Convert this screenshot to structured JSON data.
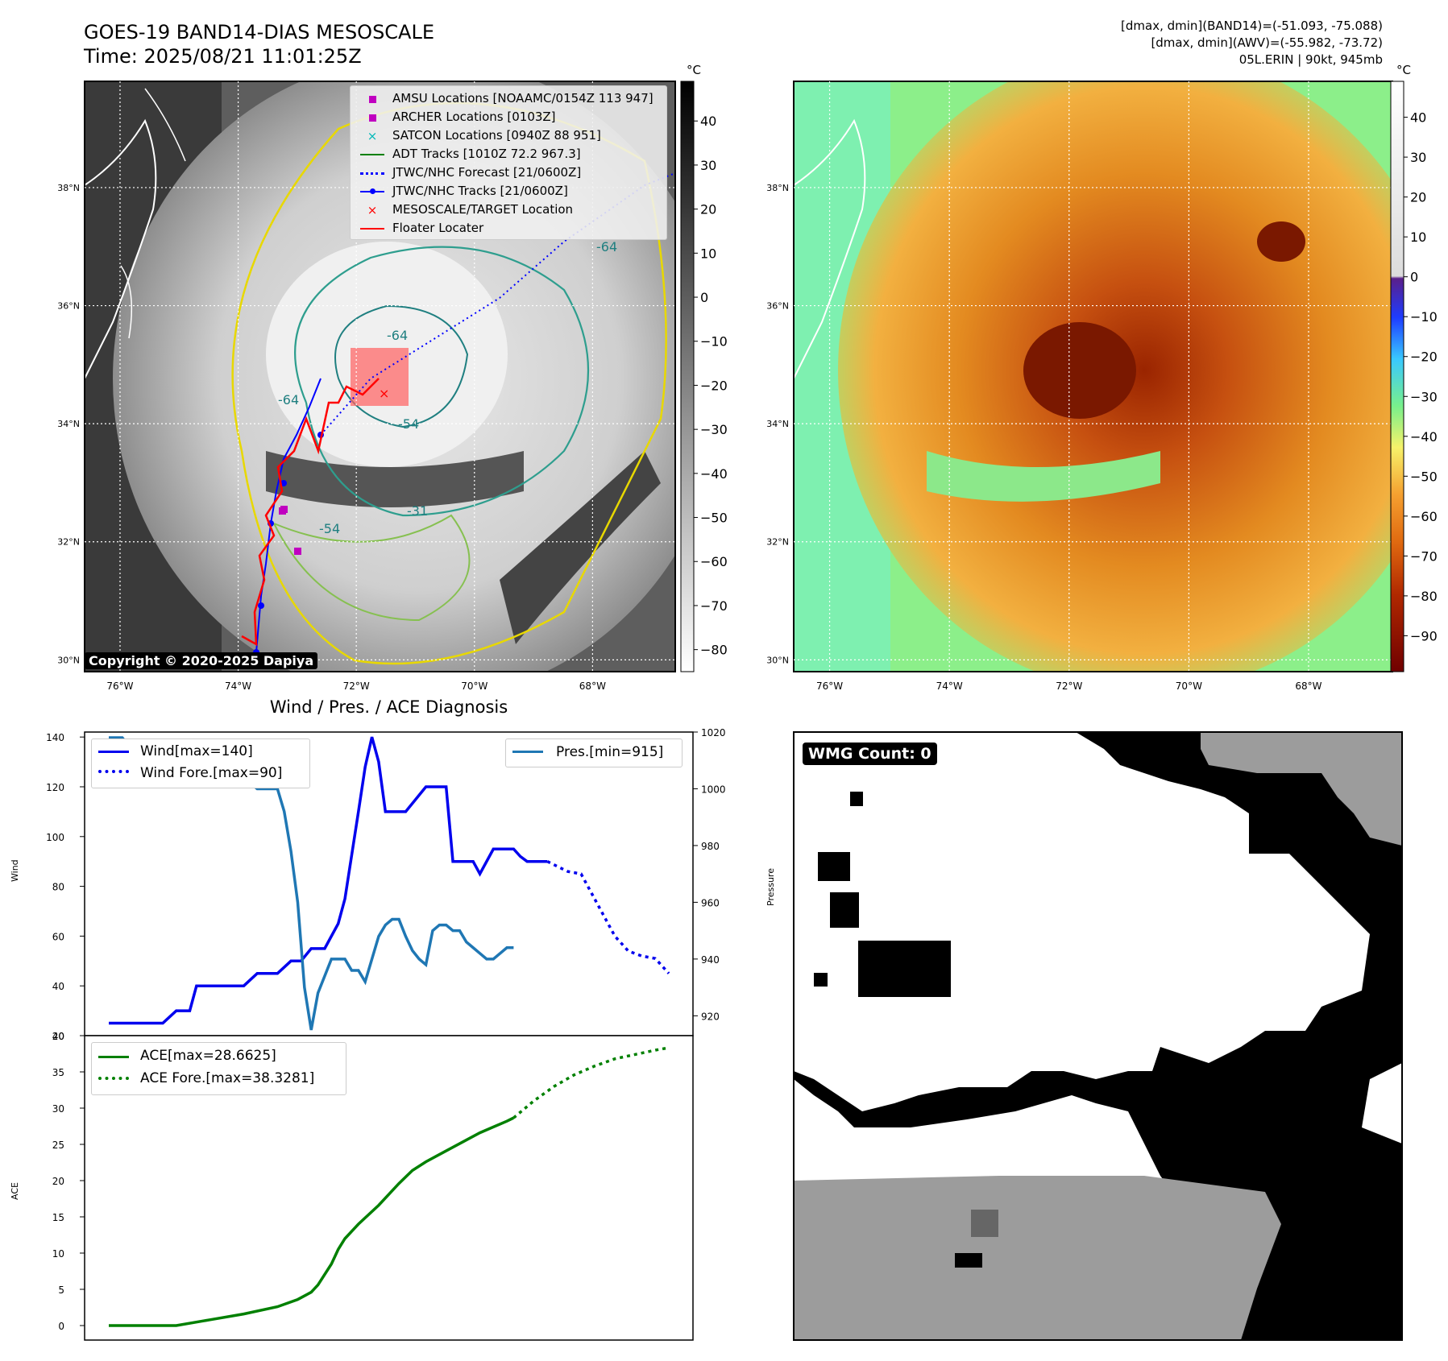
{
  "header": {
    "title_line1": "GOES-19 BAND14-DIAS MESOSCALE",
    "title_line2": "Time: 2025/08/21 11:01:25Z",
    "info_line1": "[dmax, dmin](BAND14)=(-51.093, -75.088)",
    "info_line2": "[dmax, dmin](AWV)=(-55.982, -73.72)",
    "info_line3": "05L.ERIN | 90kt, 945mb"
  },
  "map_axes": {
    "lon_labels": [
      "76°W",
      "74°W",
      "72°W",
      "70°W",
      "68°W"
    ],
    "lat_labels": [
      "38°N",
      "36°N",
      "34°N",
      "32°N",
      "30°N"
    ],
    "lon_values": [
      -76,
      -74,
      -72,
      -70,
      -68
    ],
    "lat_values": [
      38,
      36,
      34,
      32,
      30
    ],
    "lon_range": [
      -76.6,
      -66.6
    ],
    "lat_range": [
      29.8,
      39.8
    ]
  },
  "colorbar_ir": {
    "unit": "°C",
    "ticks": [
      "40",
      "30",
      "20",
      "10",
      "0",
      "−10",
      "−20",
      "−30",
      "−40",
      "−50",
      "−60",
      "−70",
      "−80"
    ],
    "range": [
      -85,
      49
    ]
  },
  "colorbar_color": {
    "unit": "°C",
    "ticks": [
      "40",
      "30",
      "20",
      "10",
      "0",
      "−10",
      "−20",
      "−30",
      "−40",
      "−50",
      "−60",
      "−70",
      "−80",
      "−90"
    ],
    "range": [
      -99,
      49
    ]
  },
  "legend": {
    "items": [
      {
        "label": "AMSU Locations [NOAAMC/0154Z 113 947]",
        "marker": "square",
        "color": "#c000c0"
      },
      {
        "label": "ARCHER Locations [0103Z]",
        "marker": "square",
        "color": "#c000c0"
      },
      {
        "label": "SATCON Locations [0940Z 88 951]",
        "marker": "x",
        "color": "#00b8b8"
      },
      {
        "label": "ADT Tracks [1010Z 72.2 967.3]",
        "marker": "line",
        "color": "#008000"
      },
      {
        "label": "JTWC/NHC Forecast [21/0600Z]",
        "marker": "dotted",
        "color": "#0000ff"
      },
      {
        "label": "JTWC/NHC Tracks [21/0600Z]",
        "marker": "line-dot",
        "color": "#0000ff"
      },
      {
        "label": "MESOSCALE/TARGET Location",
        "marker": "x",
        "color": "#ff0000"
      },
      {
        "label": "Floater Locater",
        "marker": "line",
        "color": "#ff0000"
      }
    ]
  },
  "contour_labels": [
    "-64",
    "-64",
    "-64",
    "-54",
    "-54",
    "-31"
  ],
  "copyright": "Copyright © 2020-2025 Dapiya",
  "wind_panel": {
    "title": "Wind / Pres. / ACE Diagnosis",
    "ylabel": "Wind",
    "y2label": "Pressure",
    "yticks": [
      "20",
      "40",
      "60",
      "80",
      "100",
      "120",
      "140"
    ],
    "y2ticks": [
      "920",
      "940",
      "960",
      "980",
      "1000",
      "1020"
    ],
    "legend_left": [
      "Wind[max=140]",
      "Wind Fore.[max=90]"
    ],
    "legend_right": "Pres.[min=915]"
  },
  "ace_panel": {
    "ylabel": "ACE",
    "yticks": [
      "0",
      "5",
      "10",
      "15",
      "20",
      "25",
      "30",
      "35",
      "40"
    ],
    "legend": [
      "ACE[max=28.6625]",
      "ACE Fore.[max=38.3281]"
    ]
  },
  "wmg": {
    "label": "WMG Count: 0"
  },
  "colors": {
    "wind": "#0000ee",
    "pressure": "#1f77b4",
    "ace": "#008000",
    "floater": "#ff0000",
    "forecast": "#0000ff"
  },
  "chart_data": [
    {
      "type": "line",
      "title": "Wind / Pres. / ACE Diagnosis",
      "ylabel": "Wind",
      "y2label": "Pressure",
      "x": [
        0,
        1,
        2,
        3,
        4,
        5,
        6,
        7,
        8,
        9,
        10,
        11,
        12,
        13,
        14,
        15,
        16,
        17,
        18,
        19,
        20,
        21,
        22,
        23,
        24,
        25,
        26,
        27,
        28,
        29,
        30,
        31,
        32,
        33,
        34,
        35,
        36,
        37,
        38,
        39,
        40,
        41,
        42,
        43,
        44,
        45,
        46,
        47,
        48,
        49,
        50,
        51,
        52,
        53,
        54,
        55,
        56,
        57,
        58,
        59,
        60,
        61,
        62,
        63,
        64,
        65,
        66,
        67,
        68,
        69,
        70,
        71,
        72,
        73,
        74,
        75,
        76,
        77,
        78,
        79,
        80,
        81,
        82,
        83,
        84,
        85,
        86,
        87,
        88,
        89,
        90,
        91,
        92,
        93,
        94,
        95,
        96,
        97,
        98,
        99,
        100,
        101,
        102,
        103,
        104,
        105,
        106,
        107,
        108,
        109,
        110,
        111,
        112
      ],
      "ylim": [
        20,
        142
      ],
      "y2lim": [
        913,
        1020
      ],
      "series": [
        {
          "name": "Wind[max=140]",
          "axis": "left",
          "style": "solid",
          "x": [
            0,
            4,
            8,
            12,
            16,
            20,
            20,
            24,
            26,
            30,
            34,
            38,
            40,
            44,
            50,
            54,
            57,
            60,
            64,
            66,
            68,
            70,
            74,
            76,
            78,
            80,
            82,
            84,
            88,
            94,
            100,
            102,
            104,
            106,
            108,
            110,
            114,
            120,
            122,
            124,
            126,
            130
          ],
          "values": [
            25,
            25,
            25,
            25,
            25,
            30,
            30,
            30,
            40,
            40,
            40,
            40,
            40,
            45,
            45,
            50,
            50,
            55,
            55,
            60,
            65,
            75,
            110,
            128,
            140,
            130,
            110,
            110,
            110,
            120,
            120,
            90,
            90,
            90,
            90,
            85,
            95,
            95,
            92,
            90,
            90,
            90
          ]
        },
        {
          "name": "Wind Fore.[max=90]",
          "axis": "left",
          "style": "dotted",
          "x": [
            130,
            136,
            140,
            142,
            146,
            150,
            154,
            158,
            162,
            166
          ],
          "values": [
            90,
            86,
            85,
            80,
            70,
            60,
            54,
            52,
            51,
            45
          ]
        },
        {
          "name": "Pres.[min=915]",
          "axis": "right",
          "style": "solid",
          "x": [
            0,
            4,
            8,
            12,
            14,
            16,
            18,
            20,
            22,
            24,
            26,
            28,
            30,
            32,
            34,
            36,
            38,
            40,
            42,
            44,
            46,
            48,
            50,
            52,
            54,
            56,
            58,
            60,
            62,
            64,
            66,
            68,
            70,
            72,
            74,
            76,
            78,
            80,
            82,
            84,
            86,
            88,
            90,
            92,
            94,
            96,
            98,
            100,
            102,
            104,
            106,
            108,
            110,
            112,
            114,
            116,
            118,
            120
          ],
          "values": [
            1018,
            1018,
            1012,
            1010,
            1008,
            1008,
            1008,
            1006,
            1006,
            1005,
            1005,
            1006,
            1006,
            1005,
            1005,
            1003,
            1003,
            1002,
            1002,
            1000,
            1000,
            1000,
            1000,
            992,
            978,
            960,
            930,
            915,
            928,
            934,
            940,
            940,
            940,
            936,
            936,
            932,
            940,
            948,
            952,
            954,
            954,
            948,
            943,
            940,
            938,
            950,
            952,
            952,
            950,
            950,
            946,
            944,
            942,
            940,
            940,
            942,
            944,
            944
          ]
        }
      ]
    },
    {
      "type": "line",
      "ylabel": "ACE",
      "ylim": [
        -2,
        40
      ],
      "series": [
        {
          "name": "ACE[max=28.6625]",
          "style": "solid",
          "x": [
            0,
            10,
            20,
            30,
            40,
            50,
            56,
            60,
            62,
            66,
            68,
            70,
            74,
            80,
            86,
            90,
            94,
            98,
            102,
            106,
            110,
            114,
            118,
            120
          ],
          "values": [
            0,
            0,
            0,
            0.8,
            1.6,
            2.6,
            3.6,
            4.6,
            5.6,
            8.5,
            10.5,
            12,
            14,
            16.6,
            19.6,
            21.4,
            22.6,
            23.6,
            24.6,
            25.6,
            26.6,
            27.4,
            28.2,
            28.66
          ]
        },
        {
          "name": "ACE Fore.[max=38.3281]",
          "style": "dotted",
          "x": [
            120,
            126,
            132,
            138,
            144,
            150,
            156,
            162,
            166
          ],
          "values": [
            28.66,
            31,
            33,
            34.6,
            35.8,
            36.8,
            37.4,
            38,
            38.33
          ]
        }
      ]
    }
  ]
}
